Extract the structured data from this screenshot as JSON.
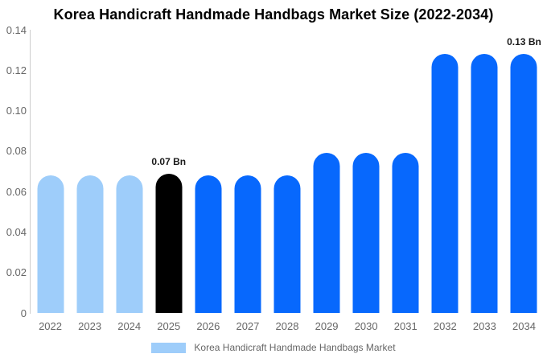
{
  "title": "Korea Handicraft Handmade Handbags Market Size (2022-2034)",
  "legend": {
    "label": "Korea Handicraft Handmade Handbags Market"
  },
  "colors": {
    "historical_bar": "#9ecdfa",
    "base_year_bar": "#000000",
    "forecast_bar": "#0768fd",
    "axis_line": "#cccccc",
    "tick_text": "#666666",
    "title_text": "#000000",
    "annotation_text": "#1a1a1a"
  },
  "chart_data": {
    "type": "bar",
    "title": "Korea Handicraft Handmade Handbags Market Size (2022-2034)",
    "xlabel": "",
    "ylabel": "",
    "ylim": [
      0,
      0.14
    ],
    "grid": false,
    "legend_position": "bottom",
    "categories": [
      "2022",
      "2023",
      "2024",
      "2025",
      "2026",
      "2027",
      "2028",
      "2029",
      "2030",
      "2031",
      "2032",
      "2033",
      "2034"
    ],
    "values": [
      0.068,
      0.068,
      0.068,
      0.069,
      0.068,
      0.068,
      0.068,
      0.079,
      0.079,
      0.079,
      0.128,
      0.128,
      0.128
    ],
    "bar_color_roles": [
      "historical_bar",
      "historical_bar",
      "historical_bar",
      "base_year_bar",
      "forecast_bar",
      "forecast_bar",
      "forecast_bar",
      "forecast_bar",
      "forecast_bar",
      "forecast_bar",
      "forecast_bar",
      "forecast_bar",
      "forecast_bar"
    ],
    "yticks": [
      {
        "value": 0.14,
        "label": "0.14"
      },
      {
        "value": 0.12,
        "label": "0.12"
      },
      {
        "value": 0.1,
        "label": "0.10"
      },
      {
        "value": 0.08,
        "label": "0.08"
      },
      {
        "value": 0.06,
        "label": "0.06"
      },
      {
        "value": 0.04,
        "label": "0.04"
      },
      {
        "value": 0.02,
        "label": "0.02"
      },
      {
        "value": 0,
        "label": "0"
      }
    ],
    "annotations": [
      {
        "category": "2025",
        "text": "0.07 Bn"
      },
      {
        "category": "2034",
        "text": "0.13 Bn"
      }
    ]
  }
}
